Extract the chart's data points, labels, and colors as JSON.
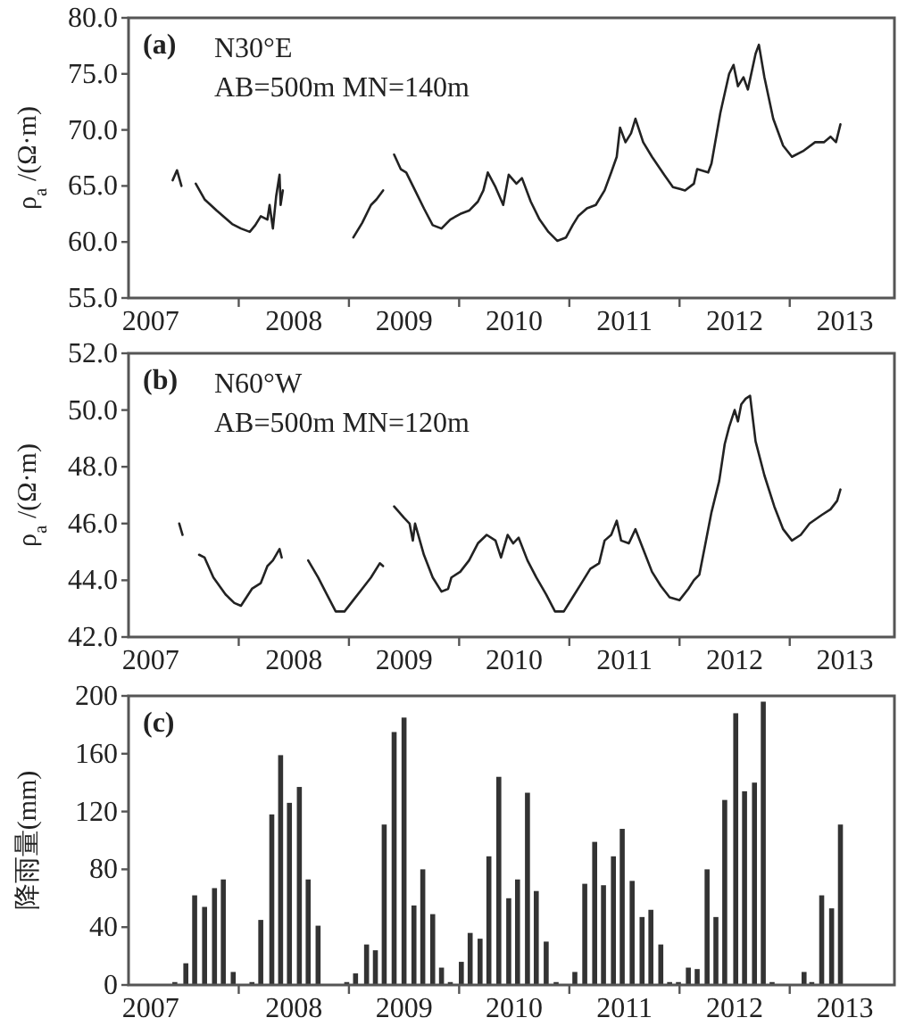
{
  "chart_data": [
    {
      "type": "line",
      "ylabel": "ρ$_{a}$ /(Ω·m)",
      "annotations": [
        "(a)",
        "N30°E",
        "AB=500m   MN=140m"
      ],
      "xlim": [
        2007,
        2013.95
      ],
      "ylim": [
        55,
        80
      ],
      "yticks": [
        {
          "value": 55,
          "label": "55.0"
        },
        {
          "value": 60,
          "label": "60.0"
        },
        {
          "value": 65,
          "label": "65.0"
        },
        {
          "value": 70,
          "label": "70.0"
        },
        {
          "value": 75,
          "label": "75.0"
        },
        {
          "value": 80,
          "label": "80.0"
        }
      ],
      "xticks": [
        {
          "value": 2007.2,
          "label": "2007"
        },
        {
          "value": 2008,
          "label": null
        },
        {
          "value": 2008.5,
          "label": "2008"
        },
        {
          "value": 2009,
          "label": null
        },
        {
          "value": 2009.5,
          "label": "2009"
        },
        {
          "value": 2010,
          "label": null
        },
        {
          "value": 2010.5,
          "label": "2010"
        },
        {
          "value": 2011,
          "label": null
        },
        {
          "value": 2011.5,
          "label": "2011"
        },
        {
          "value": 2012,
          "label": null
        },
        {
          "value": 2012.5,
          "label": "2012"
        },
        {
          "value": 2013,
          "label": null
        },
        {
          "value": 2013.5,
          "label": "2013"
        }
      ],
      "series": [
        {
          "color": "#222222",
          "x": [
            2007.4,
            2007.44,
            2007.48
          ],
          "values": [
            65.5,
            66.4,
            65.0
          ]
        },
        {
          "color": "#222222",
          "x": [
            2007.61,
            2007.69,
            2007.8,
            2007.94,
            2008.02,
            2008.1,
            2008.15,
            2008.2,
            2008.26,
            2008.28,
            2008.31,
            2008.34,
            2008.37,
            2008.38,
            2008.4
          ],
          "values": [
            65.2,
            63.8,
            62.8,
            61.6,
            61.2,
            60.9,
            61.5,
            62.3,
            62.0,
            63.3,
            61.2,
            64.1,
            66.0,
            63.3,
            64.6
          ]
        },
        {
          "color": "#222222",
          "x": [
            2009.04,
            2009.12,
            2009.2,
            2009.25,
            2009.31
          ],
          "values": [
            60.4,
            61.7,
            63.3,
            63.8,
            64.6
          ]
        },
        {
          "color": "#222222",
          "x": [
            2009.41,
            2009.47,
            2009.52,
            2009.6,
            2009.68,
            2009.76,
            2009.84,
            2009.92,
            2010.01,
            2010.09,
            2010.17,
            2010.22,
            2010.26,
            2010.33,
            2010.4,
            2010.45,
            2010.52,
            2010.57,
            2010.65,
            2010.73,
            2010.81,
            2010.89,
            2010.97,
            2011.03,
            2011.08,
            2011.16,
            2011.24,
            2011.32,
            2011.38,
            2011.43,
            2011.46,
            2011.51,
            2011.56,
            2011.6,
            2011.67,
            2011.75,
            2011.86,
            2011.94,
            2012.05,
            2012.13,
            2012.16,
            2012.26,
            2012.29,
            2012.37,
            2012.45,
            2012.49,
            2012.53,
            2012.58,
            2012.62,
            2012.69,
            2012.72,
            2012.77,
            2012.85,
            2012.94,
            2013.02,
            2013.12,
            2013.23,
            2013.31,
            2013.37,
            2013.42,
            2013.46
          ],
          "values": [
            67.8,
            66.5,
            66.2,
            64.6,
            63.0,
            61.5,
            61.2,
            62.0,
            62.5,
            62.8,
            63.6,
            64.6,
            66.2,
            64.9,
            63.3,
            66.0,
            65.2,
            65.7,
            63.6,
            62.0,
            60.9,
            60.1,
            60.4,
            61.5,
            62.3,
            63.0,
            63.3,
            64.6,
            66.2,
            67.6,
            70.2,
            68.9,
            69.7,
            71.0,
            68.9,
            67.6,
            66.0,
            64.9,
            64.6,
            65.2,
            66.5,
            66.2,
            67.0,
            71.5,
            75.0,
            75.8,
            73.9,
            74.7,
            73.6,
            76.8,
            77.6,
            74.7,
            71.0,
            68.6,
            67.6,
            68.1,
            68.9,
            68.9,
            69.4,
            68.9,
            70.5
          ]
        }
      ]
    },
    {
      "type": "line",
      "ylabel": "ρ$_{a}$ /(Ω·m)",
      "annotations": [
        "(b)",
        "N60°W",
        "AB=500m   MN=120m"
      ],
      "xlim": [
        2007,
        2013.95
      ],
      "ylim": [
        42,
        52
      ],
      "yticks": [
        {
          "value": 42,
          "label": "42.0"
        },
        {
          "value": 44,
          "label": "44.0"
        },
        {
          "value": 46,
          "label": "46.0"
        },
        {
          "value": 48,
          "label": "48.0"
        },
        {
          "value": 50,
          "label": "50.0"
        },
        {
          "value": 52,
          "label": "52.0"
        }
      ],
      "xticks": [
        {
          "value": 2007.2,
          "label": "2007"
        },
        {
          "value": 2008,
          "label": null
        },
        {
          "value": 2008.5,
          "label": "2008"
        },
        {
          "value": 2009,
          "label": null
        },
        {
          "value": 2009.5,
          "label": "2009"
        },
        {
          "value": 2010,
          "label": null
        },
        {
          "value": 2010.5,
          "label": "2010"
        },
        {
          "value": 2011,
          "label": null
        },
        {
          "value": 2011.5,
          "label": "2011"
        },
        {
          "value": 2012,
          "label": null
        },
        {
          "value": 2012.5,
          "label": "2012"
        },
        {
          "value": 2013,
          "label": null
        },
        {
          "value": 2013.5,
          "label": "2013"
        }
      ],
      "series": [
        {
          "color": "#222222",
          "x": [
            2007.46,
            2007.49
          ],
          "values": [
            46.0,
            45.6
          ]
        },
        {
          "color": "#222222",
          "x": [
            2007.64,
            2007.69,
            2007.77,
            2007.88,
            2007.96,
            2008.02,
            2008.07,
            2008.12,
            2008.2,
            2008.26,
            2008.31,
            2008.37,
            2008.39
          ],
          "values": [
            44.9,
            44.8,
            44.1,
            43.5,
            43.2,
            43.1,
            43.4,
            43.7,
            43.9,
            44.5,
            44.7,
            45.1,
            44.8
          ]
        },
        {
          "color": "#222222",
          "x": [
            2008.63,
            2008.72,
            2008.8,
            2008.88,
            2008.96,
            2009.04,
            2009.12,
            2009.2,
            2009.28,
            2009.31
          ],
          "values": [
            44.7,
            44.1,
            43.5,
            42.9,
            42.9,
            43.3,
            43.7,
            44.1,
            44.6,
            44.5
          ]
        },
        {
          "color": "#222222",
          "x": [
            2009.41,
            2009.5,
            2009.55,
            2009.58,
            2009.6,
            2009.68,
            2009.76,
            2009.84,
            2009.9,
            2009.93,
            2010.01,
            2010.09,
            2010.17,
            2010.25,
            2010.33,
            2010.38,
            2010.44,
            2010.49,
            2010.54,
            2010.62,
            2010.7,
            2010.79,
            2010.87,
            2010.95,
            2011.03,
            2011.11,
            2011.19,
            2011.27,
            2011.32,
            2011.38,
            2011.43,
            2011.47,
            2011.54,
            2011.6,
            2011.67,
            2011.75,
            2011.83,
            2011.91,
            2012.0,
            2012.08,
            2012.13,
            2012.18,
            2012.24,
            2012.29,
            2012.36,
            2012.41,
            2012.45,
            2012.5,
            2012.53,
            2012.56,
            2012.6,
            2012.64,
            2012.69,
            2012.77,
            2012.86,
            2012.94,
            2013.02,
            2013.1,
            2013.18,
            2013.29,
            2013.37,
            2013.43,
            2013.46
          ],
          "values": [
            46.6,
            46.2,
            46.0,
            45.4,
            46.0,
            44.9,
            44.1,
            43.6,
            43.7,
            44.1,
            44.3,
            44.7,
            45.3,
            45.6,
            45.4,
            44.8,
            45.6,
            45.3,
            45.5,
            44.7,
            44.1,
            43.5,
            42.9,
            42.9,
            43.4,
            43.9,
            44.4,
            44.6,
            45.4,
            45.6,
            46.1,
            45.4,
            45.3,
            45.8,
            45.1,
            44.3,
            43.8,
            43.4,
            43.3,
            43.7,
            44.0,
            44.2,
            45.4,
            46.4,
            47.5,
            48.8,
            49.4,
            50.0,
            49.6,
            50.2,
            50.4,
            50.5,
            48.9,
            47.7,
            46.6,
            45.8,
            45.4,
            45.6,
            46.0,
            46.3,
            46.5,
            46.8,
            47.2
          ]
        }
      ]
    },
    {
      "type": "bar",
      "ylabel": "降雨量(mm)",
      "annotations": [
        "(c)"
      ],
      "xlim": [
        2007,
        2013.95
      ],
      "ylim": [
        0,
        200
      ],
      "yticks": [
        0,
        40,
        80,
        120,
        160,
        200
      ],
      "xticks": [
        {
          "value": 2007.2,
          "label": "2007"
        },
        {
          "value": 2008,
          "label": null
        },
        {
          "value": 2008.5,
          "label": "2008"
        },
        {
          "value": 2009,
          "label": null
        },
        {
          "value": 2009.5,
          "label": "2009"
        },
        {
          "value": 2010,
          "label": null
        },
        {
          "value": 2010.5,
          "label": "2010"
        },
        {
          "value": 2011,
          "label": null
        },
        {
          "value": 2011.5,
          "label": "2011"
        },
        {
          "value": 2012,
          "label": null
        },
        {
          "value": 2012.5,
          "label": "2012"
        },
        {
          "value": 2013,
          "label": null
        },
        {
          "value": 2013.5,
          "label": "2013"
        }
      ],
      "series": [
        {
          "color": "#333333",
          "x": [
            2007.42,
            2007.52,
            2007.6,
            2007.69,
            2007.78,
            2007.86,
            2007.95,
            2008.12,
            2008.2,
            2008.3,
            2008.38,
            2008.46,
            2008.55,
            2008.63,
            2008.72,
            2008.98,
            2009.06,
            2009.16,
            2009.24,
            2009.32,
            2009.41,
            2009.5,
            2009.59,
            2009.67,
            2009.76,
            2009.84,
            2009.92,
            2010.02,
            2010.1,
            2010.19,
            2010.27,
            2010.36,
            2010.45,
            2010.53,
            2010.62,
            2010.7,
            2010.79,
            2010.88,
            2011.05,
            2011.14,
            2011.23,
            2011.31,
            2011.4,
            2011.48,
            2011.57,
            2011.66,
            2011.74,
            2011.83,
            2011.91,
            2011.99,
            2012.08,
            2012.16,
            2012.25,
            2012.33,
            2012.41,
            2012.51,
            2012.59,
            2012.68,
            2012.76,
            2012.84,
            2013.13,
            2013.2,
            2013.29,
            2013.38,
            2013.46
          ],
          "values": [
            2,
            15,
            62,
            54,
            67,
            73,
            9,
            2,
            45,
            118,
            159,
            126,
            137,
            73,
            41,
            2,
            8,
            28,
            24,
            111,
            175,
            185,
            55,
            80,
            49,
            12,
            2,
            16,
            36,
            32,
            89,
            144,
            60,
            73,
            133,
            65,
            30,
            2,
            9,
            70,
            99,
            69,
            89,
            108,
            72,
            47,
            52,
            28,
            2,
            2,
            12,
            11,
            80,
            47,
            128,
            188,
            134,
            140,
            196,
            2,
            9,
            2,
            62,
            53,
            111
          ]
        }
      ]
    }
  ]
}
